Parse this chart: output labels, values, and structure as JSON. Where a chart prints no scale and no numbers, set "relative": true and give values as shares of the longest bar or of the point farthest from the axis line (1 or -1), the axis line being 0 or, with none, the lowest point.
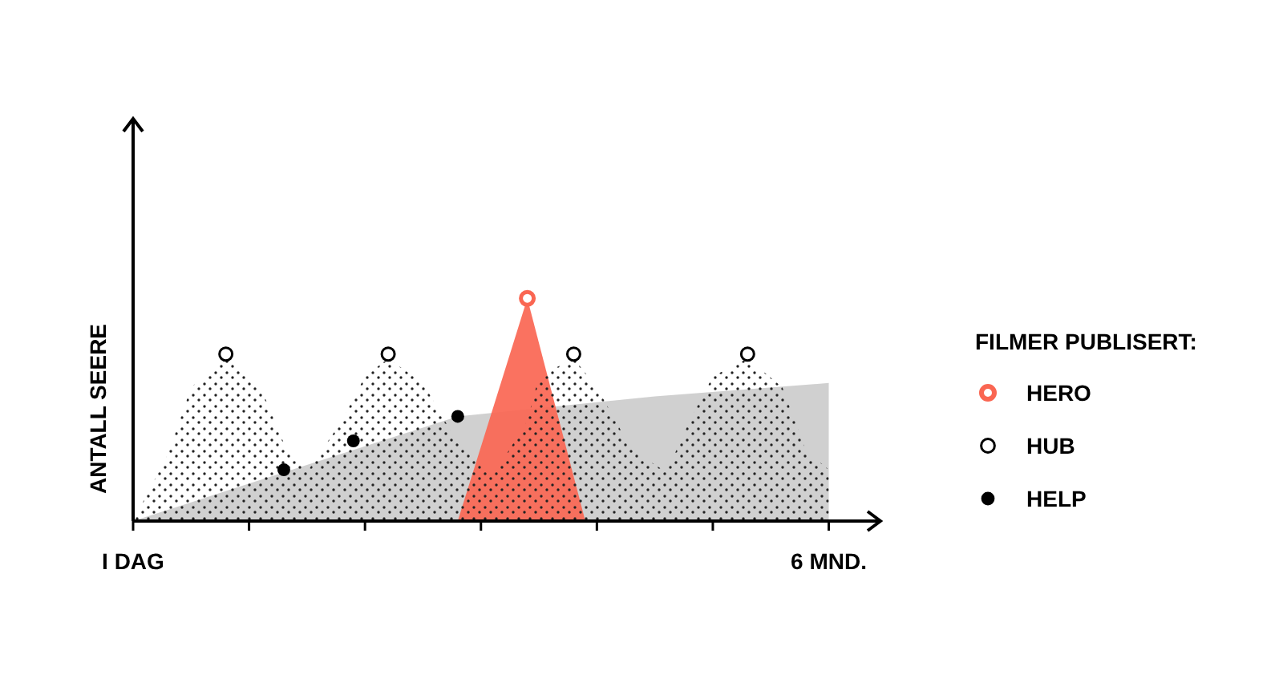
{
  "chart_data": {
    "type": "area",
    "relative": true,
    "ylabel": "ANTALL SEERE",
    "legend": "right",
    "legend_title": "FILMER PUBLISERT:",
    "tick_labels": "x",
    "categories": [
      "I DAG",
      null,
      null,
      null,
      null,
      null,
      null,
      null,
      null,
      null,
      null,
      null,
      null,
      null,
      null,
      null,
      null,
      null,
      null,
      null,
      null,
      null,
      null,
      null,
      null,
      null,
      null,
      null,
      null,
      null,
      null,
      null,
      null,
      null,
      null,
      null,
      null,
      null,
      null,
      null,
      null,
      null,
      null,
      null,
      null,
      null,
      null,
      null,
      null,
      null,
      null,
      null,
      null,
      null,
      null,
      null,
      null,
      null,
      null,
      null,
      "6 MND."
    ],
    "series": [
      {
        "color": "#cccccc",
        "values": [
          0,
          null,
          null,
          null,
          null,
          null,
          null,
          null,
          null,
          null,
          null,
          null,
          null,
          null,
          null,
          null,
          null,
          null,
          null,
          null,
          null,
          null,
          null,
          null,
          null,
          null,
          null,
          null,
          0.47,
          null,
          null,
          null,
          null,
          null,
          null,
          null,
          null,
          null,
          null,
          null,
          null,
          null,
          null,
          null,
          null,
          0.56,
          null,
          null,
          null,
          null,
          null,
          null,
          null,
          null,
          null,
          null,
          null,
          null,
          null,
          null,
          0.62
        ]
      },
      {
        "color": "#fa6652",
        "values": [
          null,
          null,
          null,
          null,
          null,
          null,
          null,
          null,
          null,
          null,
          null,
          null,
          null,
          null,
          null,
          null,
          null,
          null,
          null,
          null,
          null,
          null,
          null,
          null,
          null,
          null,
          null,
          null,
          0,
          null,
          null,
          null,
          null,
          null,
          1,
          null,
          null,
          null,
          null,
          0,
          null,
          null,
          null,
          null,
          null,
          null,
          null,
          null,
          null,
          null,
          null,
          null,
          null,
          null,
          null,
          null,
          null,
          null,
          null,
          null,
          null
        ]
      },
      {
        "color": "#222222",
        "line_style": "dotted",
        "values": [
          0,
          null,
          null,
          0.3,
          null,
          0.6,
          null,
          null,
          0.73,
          null,
          null,
          0.6,
          null,
          0.35,
          null,
          0.22,
          null,
          null,
          0.45,
          null,
          0.65,
          null,
          0.73,
          null,
          null,
          0.62,
          null,
          null,
          0.35,
          null,
          null,
          0.2,
          null,
          null,
          0.45,
          0.65,
          null,
          null,
          0.73,
          null,
          0.6,
          null,
          null,
          0.32,
          null,
          null,
          0.22,
          null,
          0.45,
          null,
          0.65,
          null,
          null,
          0.73,
          null,
          null,
          0.6,
          null,
          0.32,
          null,
          0.23
        ]
      },
      {
        "type": "scatter",
        "name": "HERO",
        "color": "#fa6652",
        "marker": "circle",
        "values": [
          null,
          null,
          null,
          null,
          null,
          null,
          null,
          null,
          null,
          null,
          null,
          null,
          null,
          null,
          null,
          null,
          null,
          null,
          null,
          null,
          null,
          null,
          null,
          null,
          null,
          null,
          null,
          null,
          null,
          null,
          null,
          null,
          null,
          null,
          1,
          null,
          null,
          null,
          null,
          null,
          null,
          null,
          null,
          null,
          null,
          null,
          null,
          null,
          null,
          null,
          null,
          null,
          null,
          null,
          null,
          null,
          null,
          null,
          null,
          null,
          null
        ]
      },
      {
        "type": "scatter",
        "name": "HUB",
        "color": "#000000",
        "marker": "circle",
        "values": [
          null,
          null,
          null,
          null,
          null,
          null,
          null,
          null,
          0.75,
          null,
          null,
          null,
          null,
          null,
          null,
          null,
          null,
          null,
          null,
          null,
          null,
          null,
          0.75,
          null,
          null,
          null,
          null,
          null,
          null,
          null,
          null,
          null,
          null,
          null,
          null,
          null,
          null,
          null,
          0.75,
          null,
          null,
          null,
          null,
          null,
          null,
          null,
          null,
          null,
          null,
          null,
          null,
          null,
          null,
          0.75,
          null,
          null,
          null,
          null,
          null,
          null,
          null
        ]
      },
      {
        "type": "scatter",
        "name": "HELP",
        "color": "#000000",
        "marker": "circle",
        "values": [
          null,
          null,
          null,
          null,
          null,
          null,
          null,
          null,
          null,
          null,
          null,
          null,
          null,
          0.23,
          null,
          null,
          null,
          null,
          null,
          0.36,
          null,
          null,
          null,
          null,
          null,
          null,
          null,
          null,
          0.47,
          null,
          null,
          null,
          null,
          null,
          null,
          null,
          null,
          null,
          null,
          null,
          null,
          null,
          null,
          null,
          null,
          null,
          null,
          null,
          null,
          null,
          null,
          null,
          null,
          null,
          null,
          null,
          null,
          null,
          null,
          null,
          null
        ]
      }
    ]
  }
}
